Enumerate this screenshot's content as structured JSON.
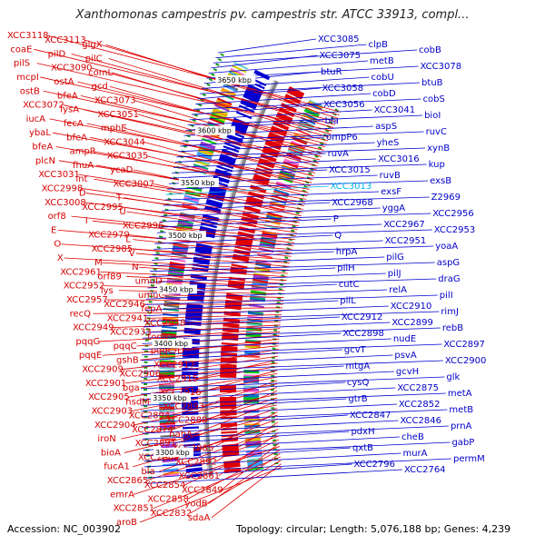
{
  "title": "Xanthomonas campestris pv. campestris str. ATCC 33913, compl...",
  "footer": {
    "accession": "Accession: NC_003902",
    "topology": "Topology: circular; Length: 5,076,188 bp; Genes: 4,239"
  },
  "colors": {
    "forward": "#e00000",
    "reverse": "#0000d0",
    "highlight": "#00b4e6",
    "backbone": "#888888"
  },
  "kbp_labels": [
    "3650 kbp",
    "3600 kbp",
    "3550 kbp",
    "3500 kbp",
    "3450 kbp",
    "3400 kbp",
    "3350 kbp",
    "3300 kbp"
  ],
  "left_labels": [
    "XCC3118",
    "XCC3113",
    "glgX",
    "coaE",
    "pilD",
    "pilC",
    "pilS",
    "XCC3090",
    "comL",
    "mcpI",
    "ostA",
    "gcd",
    "ostB",
    "bfeA",
    "XCC3073",
    "XCC3072",
    "lysA",
    "XCC3051",
    "iucA",
    "fecA",
    "mphE",
    "ybaL",
    "bfeA",
    "XCC3044",
    "bfeA",
    "ampR",
    "XCC3035",
    "plcN",
    "fhuA",
    "ycaD",
    "XCC3031",
    "int",
    "XCC3007",
    "XCC2998",
    "D",
    "T",
    "XCC3008",
    "XCC2995",
    "U",
    "orf8",
    "I",
    "XCC2996",
    "E",
    "XCC2979",
    "L",
    "O",
    "XCC2985",
    "V",
    "X",
    "M",
    "N",
    "XCC2961",
    "orf89",
    "umuD",
    "XCC2952",
    "lys",
    "umuC",
    "XCC2957",
    "XCC2946",
    "fepA",
    "recQ",
    "XCC2941",
    "XCC2948",
    "XCC2949",
    "XCC2933",
    "tonB",
    "pqqG",
    "pqqC",
    "pqqC/D",
    "pqqE",
    "gshB",
    "XCC2917",
    "XCC2909",
    "XCC2906",
    "XCC2915",
    "XCC2901",
    "bga",
    "XCC2916",
    "XCC2905",
    "hsdM",
    "XCC2893",
    "XCC2903",
    "XCC2894",
    "XCC2889",
    "XCC2904",
    "XCC2874",
    "nahA",
    "iroN",
    "XCC2891",
    "XCC2885",
    "bioA",
    "XCC2869",
    "XCC2892",
    "fucA1",
    "bla",
    "XCC2861",
    "XCC2865",
    "XCC2854",
    "XCC2849",
    "emrA",
    "XCC2858",
    "yodB",
    "XCC2851",
    "XCC2832",
    "sdaA",
    "aroB"
  ],
  "right_labels": [
    "XCC3085",
    "clpB",
    "cobB",
    "XCC3075",
    "metB",
    "XCC3078",
    "btuR",
    "cobU",
    "btuB",
    "XCC3058",
    "cobD",
    "cobS",
    "XCC3056",
    "XCC3041",
    "bioI",
    "bla",
    "aspS",
    "ruvC",
    "ompP6",
    "yheS",
    "xynB",
    "ruvA",
    "XCC3016",
    "kup",
    "XCC3015",
    "ruvB",
    "exsB",
    "XCC3013",
    "exsF",
    "Z2969",
    "XCC2968",
    "yggA",
    "XCC2956",
    "P",
    "XCC2967",
    "XCC2953",
    "Q",
    "XCC2951",
    "yoaA",
    "hrpA",
    "pilG",
    "aspG",
    "pilH",
    "pilJ",
    "draG",
    "cutC",
    "relA",
    "pilI",
    "pilL",
    "XCC2910",
    "rimJ",
    "XCC2912",
    "XCC2899",
    "rebB",
    "XCC2898",
    "nudE",
    "XCC2897",
    "gcvT",
    "psvA",
    "XCC2900",
    "mtgA",
    "gcvH",
    "glk",
    "cysQ",
    "XCC2875",
    "metA",
    "gtrB",
    "XCC2852",
    "metB",
    "XCC2847",
    "XCC2846",
    "prnA",
    "pdxH",
    "cheB",
    "gabP",
    "qxtB",
    "murA",
    "permM",
    "XCC2796",
    "XCC2764"
  ]
}
